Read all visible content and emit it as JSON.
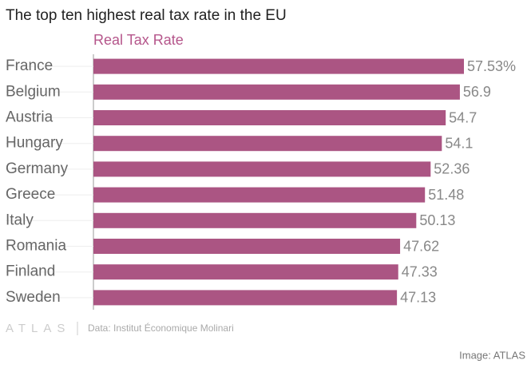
{
  "chart_data": {
    "type": "bar",
    "orientation": "horizontal",
    "title": "The top ten highest real tax rate in the EU",
    "series_label": "Real Tax Rate",
    "categories": [
      "France",
      "Belgium",
      "Austria",
      "Hungary",
      "Germany",
      "Greece",
      "Italy",
      "Romania",
      "Finland",
      "Sweden"
    ],
    "values": [
      57.53,
      56.9,
      54.7,
      54.1,
      52.36,
      51.48,
      50.13,
      47.62,
      47.33,
      47.13
    ],
    "value_labels": [
      "57.53%",
      "56.9",
      "54.7",
      "54.1",
      "52.36",
      "51.48",
      "50.13",
      "47.62",
      "47.33",
      "47.13"
    ],
    "color": "#ab5583",
    "logo": "ATLAS",
    "source": "Data: Institut Économique Molinari",
    "credit": "Image: ATLAS"
  }
}
